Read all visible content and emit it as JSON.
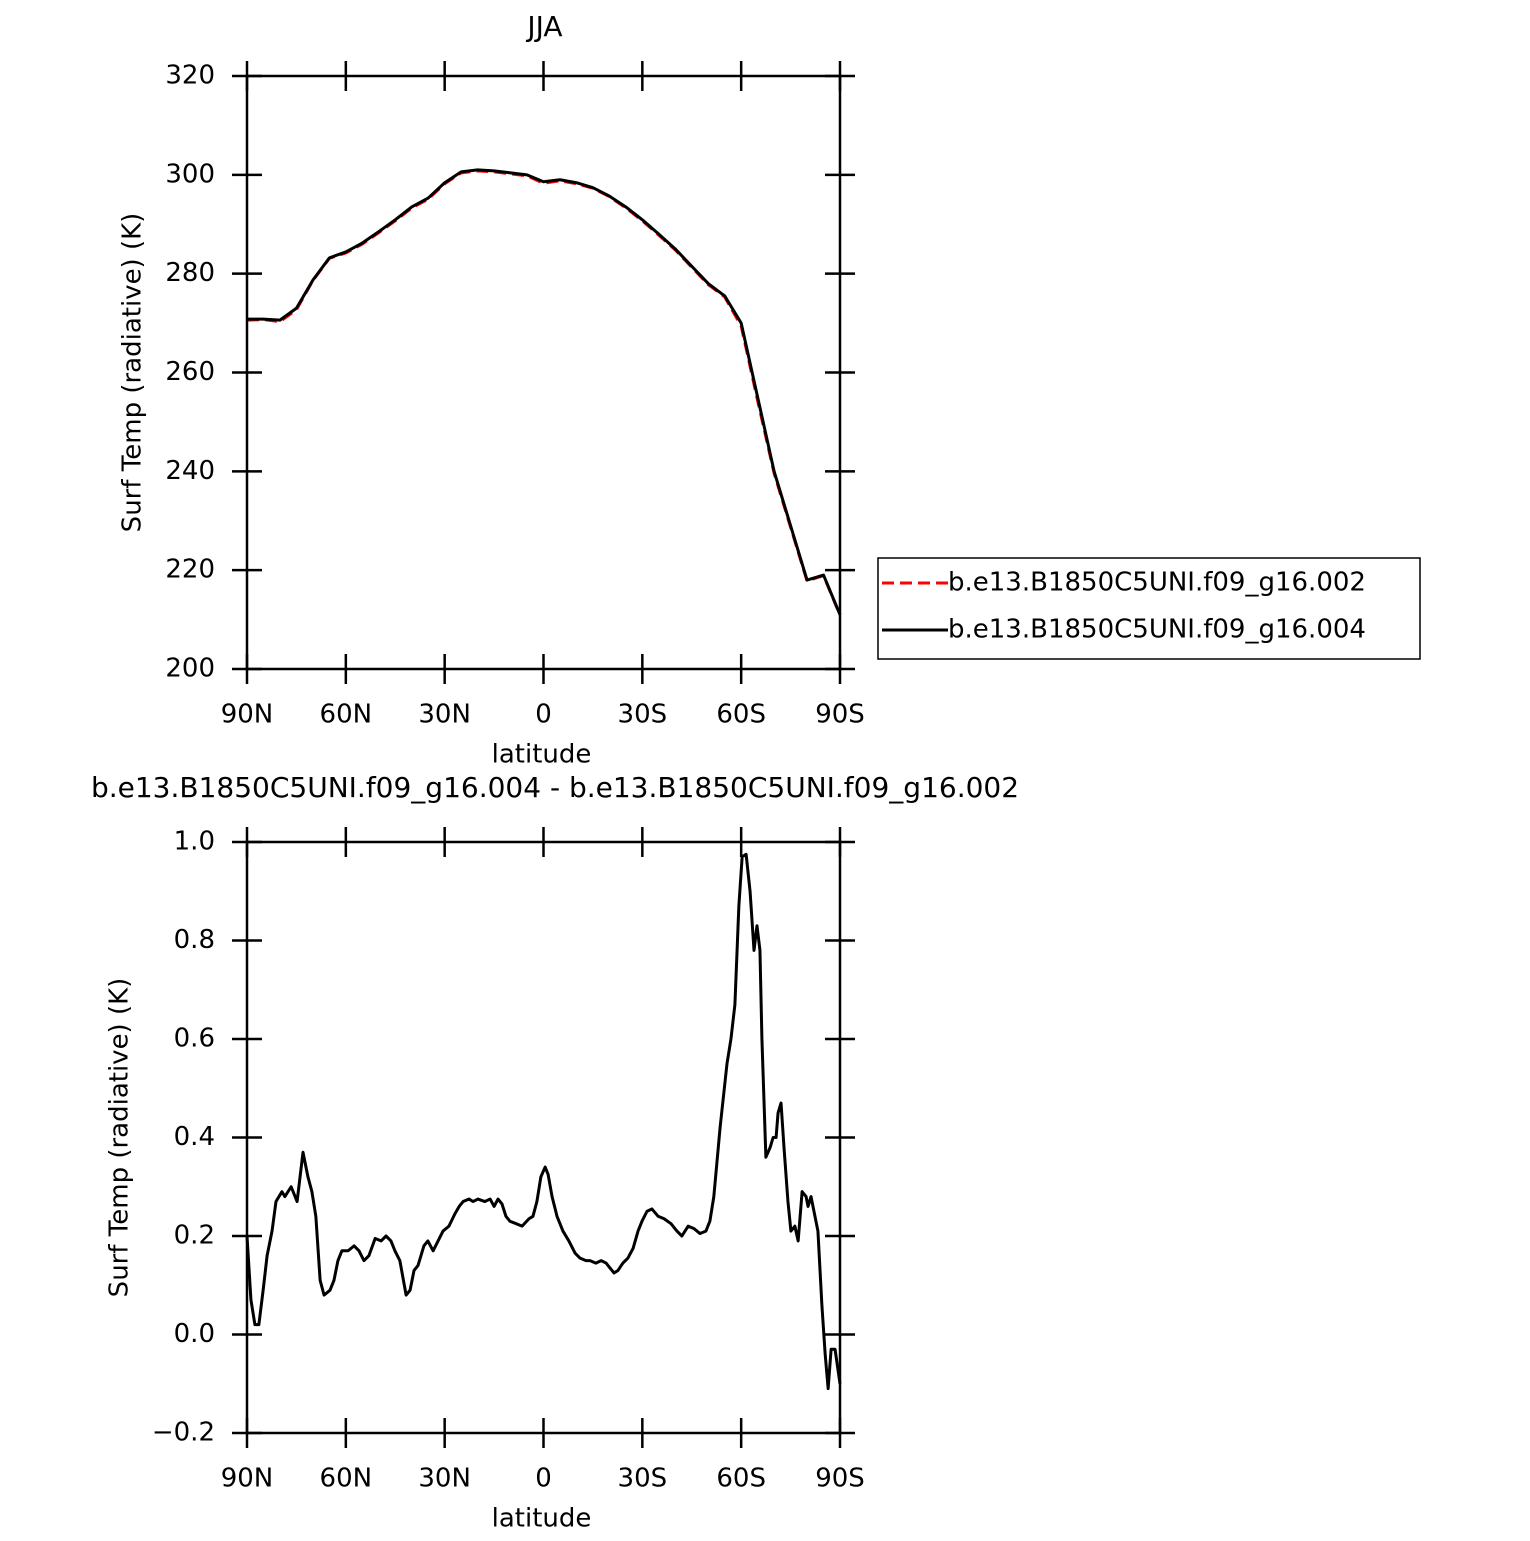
{
  "chart_data": [
    {
      "type": "line",
      "title": "JJA",
      "xlabel": "latitude",
      "ylabel": "Surf Temp (radiative) (K)",
      "x": [
        90,
        85,
        80,
        75,
        70,
        65,
        60,
        55,
        50,
        45,
        40,
        35,
        30,
        25,
        20,
        15,
        10,
        5,
        0,
        -5,
        -10,
        -15,
        -20,
        -25,
        -30,
        -35,
        -40,
        -45,
        -50,
        -55,
        -60,
        -65,
        -70,
        -75,
        -80,
        -85,
        -90
      ],
      "series": [
        {
          "name": "b.e13.B1850C5UNI.f09_g16.002",
          "color": "#ff0000",
          "dash": true,
          "values": [
            270.6,
            270.7,
            270.3,
            272.7,
            278.6,
            283.1,
            284.2,
            286.0,
            288.3,
            290.7,
            293.3,
            295.1,
            298.2,
            300.4,
            300.8,
            300.6,
            300.2,
            299.8,
            298.3,
            298.8,
            298.2,
            297.3,
            295.6,
            293.3,
            290.7,
            287.8,
            284.8,
            281.3,
            277.8,
            275.3,
            269.4,
            254.3,
            239.6,
            228.7,
            217.8,
            218.9,
            210.9
          ]
        },
        {
          "name": "b.e13.B1850C5UNI.f09_g16.004",
          "color": "#000000",
          "dash": false,
          "values": [
            270.8,
            270.8,
            270.6,
            273,
            278.7,
            283.2,
            284.4,
            286.2,
            288.5,
            290.9,
            293.5,
            295.3,
            298.4,
            300.6,
            301,
            300.8,
            300.4,
            300,
            298.6,
            299,
            298.4,
            297.4,
            295.7,
            293.5,
            290.9,
            288,
            285,
            281.5,
            278,
            275.5,
            270,
            255,
            240,
            229,
            218,
            219,
            211
          ]
        }
      ],
      "xlim": [
        90,
        -90
      ],
      "xticks": [
        {
          "value": 90,
          "label": "90N"
        },
        {
          "value": 60,
          "label": "60N"
        },
        {
          "value": 30,
          "label": "30N"
        },
        0,
        {
          "value": -30,
          "label": "30S"
        },
        {
          "value": -60,
          "label": "60S"
        },
        {
          "value": -90,
          "label": "90S"
        }
      ],
      "ylim": [
        200,
        320
      ],
      "yticks": [
        200,
        220,
        240,
        260,
        280,
        300,
        320
      ],
      "legend": "right"
    },
    {
      "type": "line",
      "title": "b.e13.B1850C5UNI.f09_g16.004 - b.e13.B1850C5UNI.f09_g16.002",
      "xlabel": "latitude",
      "ylabel": "Surf Temp (radiative) (K)",
      "x": [
        90,
        88.8,
        87.6,
        86.4,
        85.1,
        83.9,
        82.4,
        81.2,
        79.4,
        78.5,
        76.6,
        74.8,
        73.0,
        71.5,
        70.3,
        69.1,
        67.8,
        66.6,
        64.8,
        63.6,
        62.4,
        61.2,
        59.3,
        57.5,
        56.0,
        54.5,
        53.0,
        51.1,
        49.3,
        47.8,
        46.3,
        45.1,
        43.6,
        41.7,
        40.5,
        39.3,
        38.1,
        36.3,
        35.1,
        33.5,
        32.0,
        30.5,
        28.7,
        26.9,
        25.6,
        24.4,
        22.6,
        21.4,
        19.9,
        17.8,
        16.2,
        15.0,
        13.8,
        12.6,
        11.4,
        10.2,
        8.3,
        6.5,
        4.4,
        3.2,
        2.0,
        0.8,
        -0.5,
        -1.4,
        -2.6,
        -4.1,
        -5.9,
        -7.7,
        -9.6,
        -11.1,
        -12.9,
        -14.1,
        -15.9,
        -17.5,
        -19.0,
        -20.2,
        -21.4,
        -22.6,
        -24.1,
        -25.6,
        -27.2,
        -28.7,
        -29.9,
        -31.4,
        -32.9,
        -34.8,
        -36.6,
        -38.7,
        -40.5,
        -42.0,
        -43.9,
        -45.7,
        -47.5,
        -49.3,
        -50.5,
        -51.7,
        -53.6,
        -55.7,
        -56.9,
        -58.1,
        -59.3,
        -60.3,
        -61.5,
        -62.7,
        -63.9,
        -64.8,
        -65.7,
        -66.3,
        -67.5,
        -68.8,
        -69.7,
        -70.6,
        -71.2,
        -72.1,
        -73.0,
        -74.2,
        -75.1,
        -76.3,
        -77.3,
        -78.5,
        -79.7,
        -80.3,
        -81.2,
        -83.3,
        -84.5,
        -85.5,
        -86.4,
        -87.3,
        -88.5,
        -90
      ],
      "series": [
        {
          "color": "#000000",
          "values": [
            0.2,
            0.07,
            0.02,
            0.02,
            0.09,
            0.16,
            0.21,
            0.27,
            0.29,
            0.28,
            0.3,
            0.27,
            0.37,
            0.32,
            0.29,
            0.24,
            0.11,
            0.08,
            0.09,
            0.11,
            0.15,
            0.17,
            0.17,
            0.18,
            0.17,
            0.15,
            0.16,
            0.195,
            0.19,
            0.2,
            0.19,
            0.17,
            0.15,
            0.08,
            0.09,
            0.13,
            0.14,
            0.18,
            0.19,
            0.17,
            0.19,
            0.21,
            0.22,
            0.245,
            0.26,
            0.27,
            0.275,
            0.27,
            0.275,
            0.27,
            0.275,
            0.26,
            0.275,
            0.265,
            0.24,
            0.23,
            0.225,
            0.22,
            0.235,
            0.24,
            0.27,
            0.32,
            0.34,
            0.325,
            0.28,
            0.24,
            0.21,
            0.19,
            0.165,
            0.155,
            0.15,
            0.15,
            0.145,
            0.15,
            0.145,
            0.135,
            0.125,
            0.13,
            0.145,
            0.155,
            0.175,
            0.21,
            0.23,
            0.25,
            0.255,
            0.24,
            0.235,
            0.225,
            0.21,
            0.2,
            0.22,
            0.215,
            0.205,
            0.21,
            0.23,
            0.28,
            0.42,
            0.55,
            0.6,
            0.67,
            0.87,
            0.97,
            0.975,
            0.9,
            0.78,
            0.83,
            0.78,
            0.6,
            0.36,
            0.38,
            0.4,
            0.4,
            0.45,
            0.47,
            0.38,
            0.27,
            0.21,
            0.22,
            0.19,
            0.29,
            0.28,
            0.26,
            0.28,
            0.21,
            0.06,
            -0.04,
            -0.11,
            -0.03,
            -0.03,
            -0.1
          ]
        }
      ],
      "xlim": [
        90,
        -90
      ],
      "xticks": [
        {
          "value": 90,
          "label": "90N"
        },
        {
          "value": 60,
          "label": "60N"
        },
        {
          "value": 30,
          "label": "30N"
        },
        0,
        {
          "value": -30,
          "label": "30S"
        },
        {
          "value": -60,
          "label": "60S"
        },
        {
          "value": -90,
          "label": "90S"
        }
      ],
      "ylim": [
        -0.2,
        1.0
      ],
      "yticks": [
        {
          "value": -0.2,
          "label": "−0.2"
        },
        {
          "value": 0,
          "label": "0.0"
        },
        0.2,
        0.4,
        0.6,
        0.8,
        {
          "value": 1,
          "label": "1.0"
        }
      ]
    }
  ]
}
